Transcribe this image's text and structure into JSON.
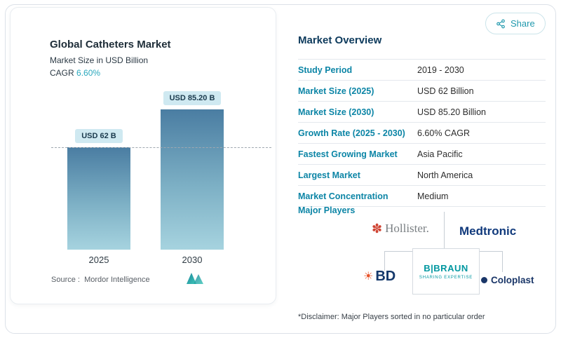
{
  "page": {
    "share_label": "Share"
  },
  "chart_data": {
    "type": "bar",
    "title": "Global Catheters Market",
    "subtitle": "Market Size in USD Billion",
    "cagr_label": "CAGR",
    "cagr_value": "6.60%",
    "categories": [
      "2025",
      "2030"
    ],
    "values": [
      62,
      85.2
    ],
    "value_labels": [
      "USD 62 B",
      "USD 85.20 B"
    ],
    "ylabel": "USD Billion",
    "ylim": [
      0,
      85.2
    ],
    "grid": "dashed horizontal reference line at 2025 bar level",
    "legend_position": "none",
    "source_label": "Source :",
    "source_value": "Mordor Intelligence"
  },
  "overview": {
    "title": "Market Overview",
    "rows": [
      {
        "label": "Study Period",
        "value": "2019 - 2030"
      },
      {
        "label": "Market Size (2025)",
        "value": "USD 62 Billion"
      },
      {
        "label": "Market Size (2030)",
        "value": "USD 85.20 Billion"
      },
      {
        "label": "Growth Rate (2025 - 2030)",
        "value": "6.60% CAGR"
      },
      {
        "label": "Fastest Growing Market",
        "value": "Asia Pacific"
      },
      {
        "label": "Largest Market",
        "value": "North America"
      },
      {
        "label": "Market Concentration",
        "value": "Medium"
      }
    ],
    "major_players_label": "Major Players",
    "players": {
      "hollister": "Hollister.",
      "medtronic": "Medtronic",
      "bd": "BD",
      "bbraun": "B|BRAUN",
      "bbraun_tagline": "SHARING EXPERTISE",
      "coloplast": "Coloplast"
    },
    "disclaimer": "*Disclaimer: Major Players sorted in no particular order"
  },
  "colors": {
    "accent_teal": "#2aa8bd",
    "row_label_teal": "#0c85a6",
    "heading_navy": "#0d3a5c",
    "bar_gradient_top": "#4a7da2",
    "bar_gradient_bottom": "#a6d3df",
    "value_chip_bg": "#cfe9f1"
  }
}
